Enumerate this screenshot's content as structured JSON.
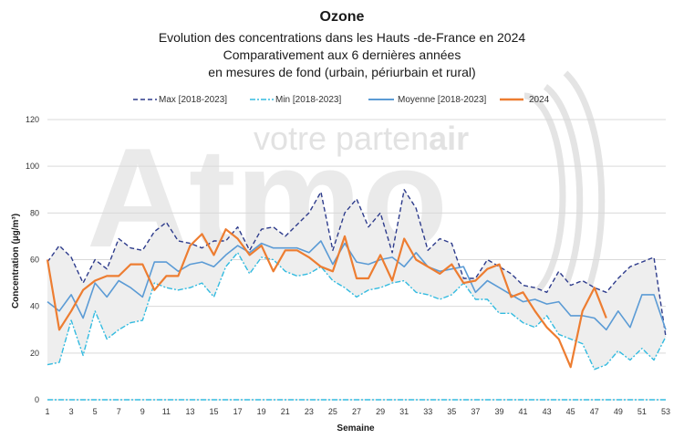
{
  "chart_data": {
    "type": "line",
    "title": "Ozone",
    "subtitle_lines": [
      "Evolution des concentrations dans les Hauts -de-France en 2024",
      "Comparativement aux 6 dernières années",
      "en mesures de fond (urbain, périurbain et rural)"
    ],
    "xlabel": "Semaine",
    "ylabel": "Concentration (µg/m³)",
    "ylim": [
      0,
      120
    ],
    "yticks": [
      0,
      20,
      40,
      60,
      80,
      100,
      120
    ],
    "xlim": [
      1,
      53
    ],
    "xticks": [
      1,
      3,
      5,
      7,
      9,
      11,
      13,
      15,
      17,
      19,
      21,
      23,
      25,
      27,
      29,
      31,
      33,
      35,
      37,
      39,
      41,
      43,
      45,
      47,
      49,
      51,
      53
    ],
    "grid": true,
    "legend_position": "top",
    "watermark": {
      "big": "Atmo",
      "prefix": "votre parten",
      "suffix": "air"
    },
    "series": [
      {
        "name": "Max [2018-2023]",
        "style": "dashed",
        "color": "#2e3c8c",
        "x": [
          1,
          2,
          3,
          4,
          5,
          6,
          7,
          8,
          9,
          10,
          11,
          12,
          13,
          14,
          15,
          16,
          17,
          18,
          19,
          20,
          21,
          22,
          23,
          24,
          25,
          26,
          27,
          28,
          29,
          30,
          31,
          32,
          33,
          34,
          35,
          36,
          37,
          38,
          39,
          40,
          41,
          42,
          43,
          44,
          45,
          46,
          47,
          48,
          49,
          50,
          51,
          52,
          53
        ],
        "values": [
          59,
          66,
          61,
          50,
          60,
          56,
          69,
          65,
          64,
          72,
          76,
          68,
          67,
          65,
          68,
          68,
          74,
          64,
          73,
          74,
          70,
          75,
          80,
          89,
          64,
          80,
          86,
          74,
          80,
          63,
          90,
          82,
          64,
          69,
          67,
          52,
          52,
          60,
          57,
          54,
          49,
          48,
          46,
          55,
          49,
          51,
          48,
          46,
          52,
          57,
          59,
          61,
          27
        ]
      },
      {
        "name": "Min [2018-2023]",
        "style": "dash-dot",
        "color": "#33bbe0",
        "x": [
          1,
          2,
          3,
          4,
          5,
          6,
          7,
          8,
          9,
          10,
          11,
          12,
          13,
          14,
          15,
          16,
          17,
          18,
          19,
          20,
          21,
          22,
          23,
          24,
          25,
          26,
          27,
          28,
          29,
          30,
          31,
          32,
          33,
          34,
          35,
          36,
          37,
          38,
          39,
          40,
          41,
          42,
          43,
          44,
          45,
          46,
          47,
          48,
          49,
          50,
          51,
          52,
          53
        ],
        "values": [
          15,
          16,
          34,
          19,
          38,
          26,
          30,
          33,
          34,
          50,
          48,
          47,
          48,
          50,
          44,
          57,
          63,
          54,
          61,
          60,
          55,
          53,
          54,
          57,
          51,
          48,
          44,
          47,
          48,
          50,
          51,
          46,
          45,
          43,
          45,
          50,
          43,
          43,
          37,
          37,
          33,
          31,
          36,
          28,
          26,
          24,
          13,
          15,
          21,
          17,
          22,
          17,
          27
        ]
      },
      {
        "name": "Moyenne [2018-2023]",
        "style": "solid",
        "color": "#5b9bd5",
        "x": [
          1,
          2,
          3,
          4,
          5,
          6,
          7,
          8,
          9,
          10,
          11,
          12,
          13,
          14,
          15,
          16,
          17,
          18,
          19,
          20,
          21,
          22,
          23,
          24,
          25,
          26,
          27,
          28,
          29,
          30,
          31,
          32,
          33,
          34,
          35,
          36,
          37,
          38,
          39,
          40,
          41,
          42,
          43,
          44,
          45,
          46,
          47,
          48,
          49,
          50,
          51,
          52,
          53
        ],
        "values": [
          42,
          38,
          45,
          35,
          50,
          44,
          51,
          48,
          44,
          59,
          59,
          55,
          58,
          59,
          57,
          62,
          66,
          63,
          67,
          65,
          65,
          65,
          63,
          68,
          58,
          67,
          59,
          58,
          60,
          61,
          57,
          63,
          57,
          55,
          56,
          57,
          46,
          51,
          48,
          45,
          42,
          43,
          41,
          42,
          36,
          36,
          35,
          30,
          38,
          31,
          45,
          45,
          30
        ]
      },
      {
        "name": "2024",
        "style": "solid",
        "color": "#ed7d31",
        "x": [
          1,
          2,
          3,
          4,
          5,
          6,
          7,
          8,
          9,
          10,
          11,
          12,
          13,
          14,
          15,
          16,
          17,
          18,
          19,
          20,
          21,
          22,
          23,
          24,
          25,
          26,
          27,
          28,
          29,
          30,
          31,
          32,
          33,
          34,
          35,
          36,
          37,
          38,
          39,
          40,
          41,
          42,
          43,
          44,
          45,
          46,
          47,
          48
        ],
        "values": [
          60,
          30,
          38,
          47,
          51,
          53,
          53,
          58,
          58,
          47,
          53,
          53,
          66,
          71,
          62,
          73,
          69,
          62,
          66,
          55,
          64,
          64,
          61,
          57,
          55,
          70,
          52,
          52,
          62,
          51,
          69,
          60,
          57,
          54,
          58,
          50,
          51,
          56,
          58,
          44,
          46,
          38,
          31,
          26,
          14,
          38,
          48,
          35
        ]
      }
    ]
  }
}
